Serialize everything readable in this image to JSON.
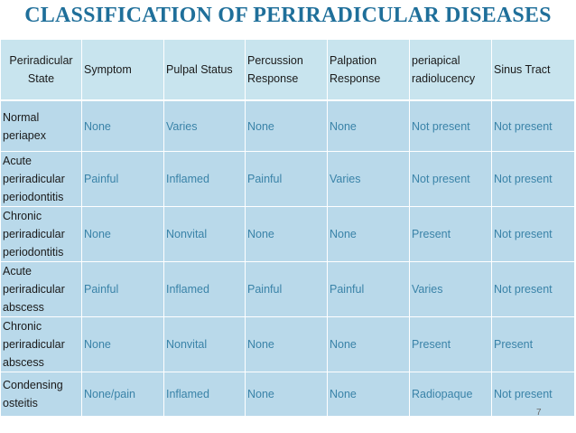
{
  "title": "CLASSIFICATION OF PERIRADICULAR DISEASES",
  "table": {
    "headers": [
      "Periradicular State",
      "Symptom",
      "Pulpal Status",
      "Percussion Response",
      "Palpation Response",
      "periapical radiolucency",
      "Sinus Tract"
    ],
    "rows": [
      [
        "Normal periapex",
        "None",
        "Varies",
        "None",
        "None",
        "Not present",
        "Not present"
      ],
      [
        "Acute periradicular periodontitis",
        "Painful",
        "Inflamed",
        "Painful",
        "Varies",
        "Not present",
        "Not present"
      ],
      [
        "Chronic periradicular periodontitis",
        "None",
        "Nonvital",
        "None",
        "None",
        "Present",
        "Not present"
      ],
      [
        "Acute periradicular abscess",
        "Painful",
        "Inflamed",
        "Painful",
        "Painful",
        "Varies",
        "Not present"
      ],
      [
        "Chronic periradicular abscess",
        "None",
        "Nonvital",
        "None",
        "None",
        "Present",
        "Present"
      ],
      [
        "Condensing osteitis",
        "None/pain",
        "Inflamed",
        "None",
        "None",
        "Radiopaque",
        "Not present"
      ]
    ]
  },
  "page_number": "7",
  "colors": {
    "title": "#1f6f9a",
    "header_bg": "#c8e4ee",
    "body_bg": "#b9d9ea",
    "body_text": "#3a83a8"
  }
}
